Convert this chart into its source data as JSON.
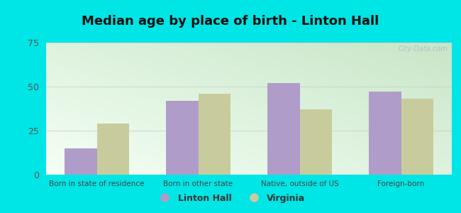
{
  "title": "Median age by place of birth - Linton Hall",
  "categories": [
    "Born in state of residence",
    "Born in other state",
    "Native, outside of US",
    "Foreign-born"
  ],
  "linton_hall": [
    15,
    42,
    52,
    47
  ],
  "virginia": [
    29,
    46,
    37,
    43
  ],
  "linton_hall_color": "#b09cc8",
  "virginia_color": "#c8cc9c",
  "ylim": [
    0,
    75
  ],
  "yticks": [
    0,
    25,
    50,
    75
  ],
  "bar_width": 0.32,
  "outer_bg": "#00e5e5",
  "legend_linton": "Linton Hall",
  "legend_virginia": "Virginia",
  "watermark": "City-Data.com",
  "grid_color": "#cccccc",
  "gradient_colors": [
    "#c8e6c8",
    "#f0fff0"
  ],
  "title_fontsize": 13
}
